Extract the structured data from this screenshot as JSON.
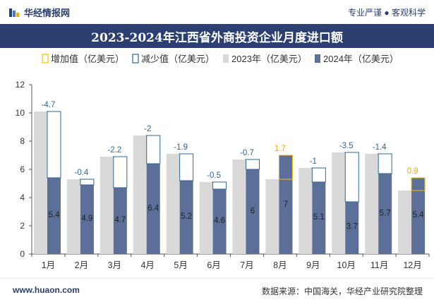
{
  "header": {
    "brand": "华经情报网",
    "tagline": "专业严谨 ● 客观科学"
  },
  "title": "2023-2024年江西省外商投资企业月度进口额",
  "footer": {
    "website": "www.huaon.com",
    "source": "数据来源：中国海关，华经产业研究院整理"
  },
  "colors": {
    "title_bg": "#2b3f70",
    "bar_2023": "#d9d9d9",
    "bar_2024": "#5b6f99",
    "increase": "#f2c200",
    "decrease": "#2f6796"
  },
  "chart_data": {
    "type": "bar",
    "categories": [
      "1月",
      "2月",
      "3月",
      "4月",
      "5月",
      "6月",
      "7月",
      "8月",
      "9月",
      "10月",
      "11月",
      "12月"
    ],
    "series": [
      {
        "name": "2023年（亿美元）",
        "values": [
          10.1,
          5.3,
          6.9,
          8.4,
          7.1,
          5.1,
          6.7,
          5.3,
          6.1,
          7.2,
          7.1,
          4.5
        ]
      },
      {
        "name": "2024年（亿美元）",
        "values": [
          5.4,
          4.9,
          4.7,
          6.4,
          5.2,
          4.6,
          6,
          7,
          5.1,
          3.7,
          5.7,
          5.4
        ]
      }
    ],
    "change": [
      "-4.7",
      "-0.4",
      "-2.2",
      "-2",
      "-1.9",
      "-0.5",
      "-0.7",
      "1.7",
      "-1",
      "-3.5",
      "-1.4",
      "0.9"
    ],
    "data_labels_2024": [
      "5.4",
      "4.9",
      "4.7",
      "6.4",
      "5.2",
      "4.6",
      "6",
      "7",
      "5.1",
      "3.7",
      "5.7",
      "5.4"
    ],
    "legend": [
      "增加值（亿美元）",
      "减少值（亿美元）",
      "2023年（亿美元）",
      "2024年（亿美元）"
    ],
    "legend_position": "top",
    "ylim": [
      0,
      12
    ],
    "yticks": [
      "0",
      "2",
      "4",
      "6",
      "8",
      "10",
      "12"
    ],
    "grid": false
  }
}
